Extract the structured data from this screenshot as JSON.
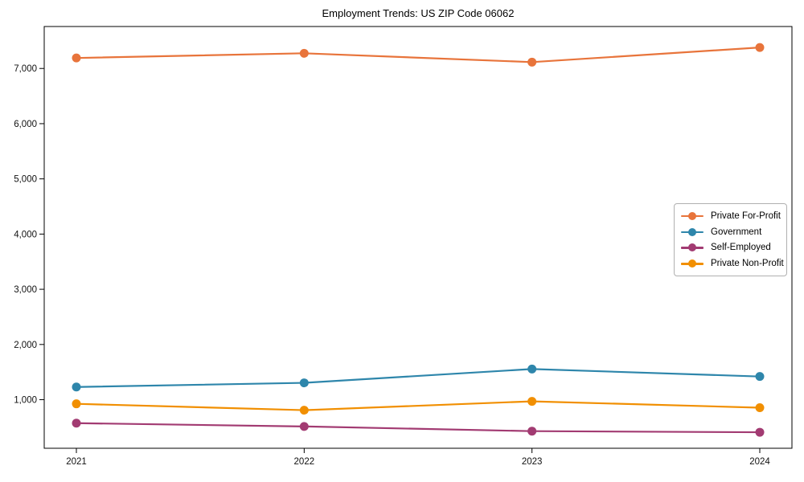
{
  "chart_data": {
    "type": "line",
    "title": "Employment Trends: US ZIP Code 06062",
    "categories": [
      "2021",
      "2022",
      "2023",
      "2024"
    ],
    "series": [
      {
        "name": "Private For-Profit",
        "color": "#E8743B",
        "values": [
          7190,
          7275,
          7115,
          7380
        ]
      },
      {
        "name": "Government",
        "color": "#2E86AB",
        "values": [
          1230,
          1305,
          1555,
          1420
        ]
      },
      {
        "name": "Self-Employed",
        "color": "#A23B72",
        "values": [
          575,
          515,
          430,
          410
        ]
      },
      {
        "name": "Private Non-Profit",
        "color": "#F18F01",
        "values": [
          925,
          810,
          970,
          855
        ]
      }
    ],
    "xlabel": "",
    "ylabel": "",
    "ylim": [
      120,
      7760
    ],
    "yticks": [
      1000,
      2000,
      3000,
      4000,
      5000,
      6000,
      7000
    ],
    "grid": false,
    "legend_position": "center-right",
    "marker": "circle",
    "line_width": 2.2,
    "marker_radius": 5.5,
    "axis_color": "#000000",
    "text_color": "#111111",
    "background": "#ffffff"
  }
}
